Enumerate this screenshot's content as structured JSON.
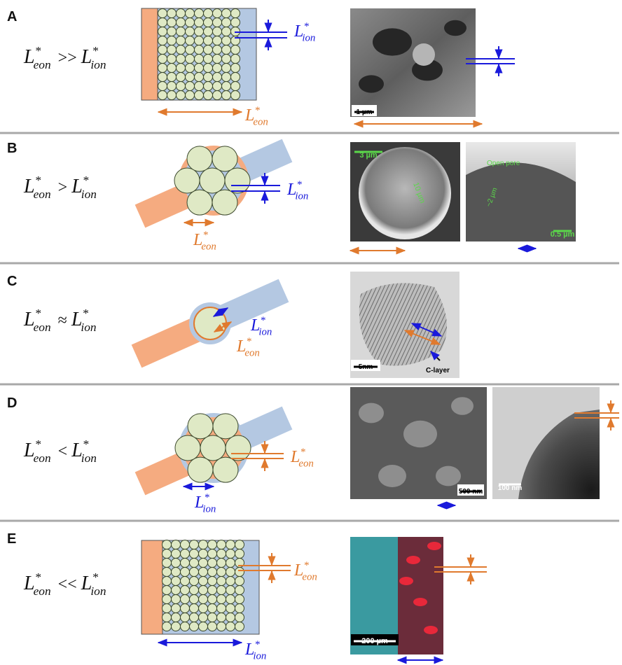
{
  "panels": [
    {
      "letter": "A",
      "relation": {
        "left": {
          "base": "L",
          "sup": "*",
          "sub": "eon"
        },
        "operator": ">>",
        "right": {
          "base": "L",
          "sup": "*",
          "sub": "ion"
        }
      },
      "labels": [
        {
          "base": "L",
          "sup": "*",
          "sub": "ion"
        },
        {
          "base": "L",
          "sup": "*",
          "sub": "eon"
        }
      ],
      "images": [
        {
          "scale_bar": "1 µm"
        }
      ]
    },
    {
      "letter": "B",
      "relation": {
        "left": {
          "base": "L",
          "sup": "*",
          "sub": "eon"
        },
        "operator": ">",
        "right": {
          "base": "L",
          "sup": "*",
          "sub": "ion"
        }
      },
      "labels": [
        {
          "base": "L",
          "sup": "*",
          "sub": "ion"
        },
        {
          "base": "L",
          "sup": "*",
          "sub": "eon"
        }
      ],
      "images": [
        {
          "scale_bar": "3 µm",
          "annotations": [
            "10 µm"
          ]
        },
        {
          "scale_bar": "0.5 µm",
          "annotations": [
            "Open pore",
            "~2 µm"
          ]
        }
      ]
    },
    {
      "letter": "C",
      "relation": {
        "left": {
          "base": "L",
          "sup": "*",
          "sub": "eon"
        },
        "operator": "≈",
        "right": {
          "base": "L",
          "sup": "*",
          "sub": "ion"
        }
      },
      "labels": [
        {
          "base": "L",
          "sup": "*",
          "sub": "ion"
        },
        {
          "base": "L",
          "sup": "*",
          "sub": "eon"
        }
      ],
      "images": [
        {
          "scale_bar": "5nm",
          "annotations": [
            "C-layer"
          ]
        }
      ]
    },
    {
      "letter": "D",
      "relation": {
        "left": {
          "base": "L",
          "sup": "*",
          "sub": "eon"
        },
        "operator": "<",
        "right": {
          "base": "L",
          "sup": "*",
          "sub": "ion"
        }
      },
      "labels": [
        {
          "base": "L",
          "sup": "*",
          "sub": "eon"
        },
        {
          "base": "L",
          "sup": "*",
          "sub": "ion"
        }
      ],
      "images": [
        {
          "scale_bar": "500 nm"
        },
        {
          "scale_bar": "100 nm"
        }
      ]
    },
    {
      "letter": "E",
      "relation": {
        "left": {
          "base": "L",
          "sup": "*",
          "sub": "eon"
        },
        "operator": "<<",
        "right": {
          "base": "L",
          "sup": "*",
          "sub": "ion"
        }
      },
      "labels": [
        {
          "base": "L",
          "sup": "*",
          "sub": "eon"
        },
        {
          "base": "L",
          "sup": "*",
          "sub": "ion"
        }
      ],
      "images": [
        {
          "scale_bar": "200 µm"
        }
      ]
    }
  ]
}
